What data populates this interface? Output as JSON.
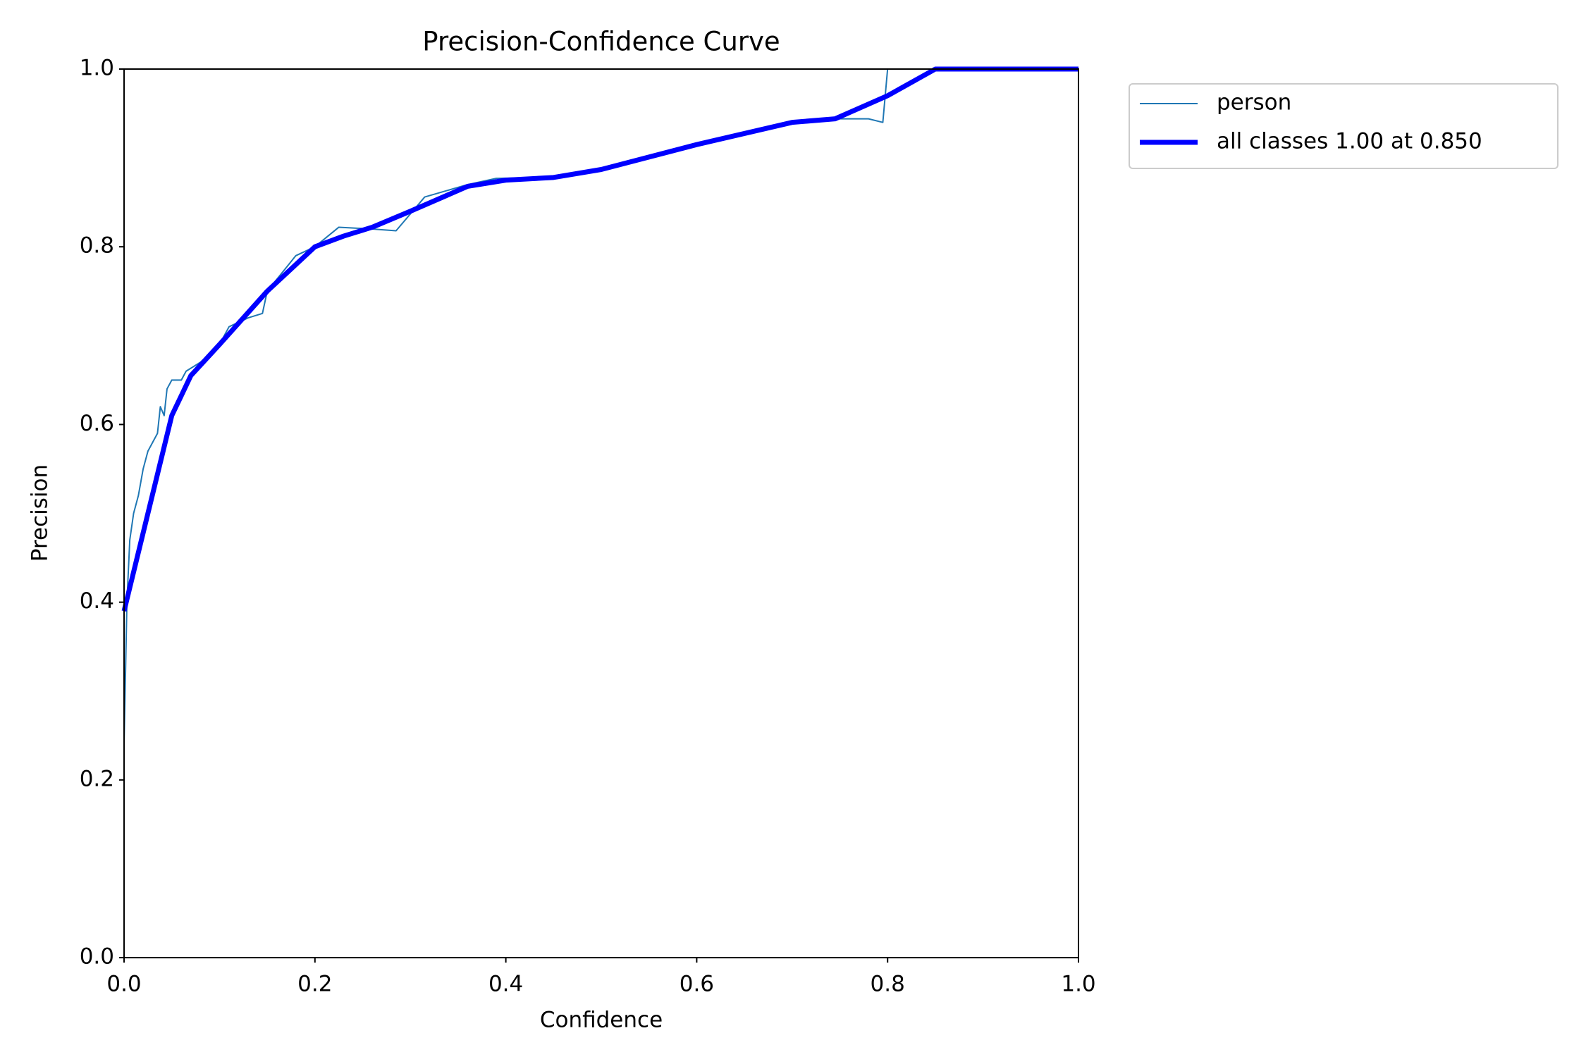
{
  "chart_data": {
    "type": "line",
    "title": "Precision-Confidence Curve",
    "xlabel": "Confidence",
    "ylabel": "Precision",
    "xlim": [
      0,
      1
    ],
    "ylim": [
      0,
      1
    ],
    "xticks": [
      {
        "value": 0,
        "label": "0.0"
      },
      0.2,
      0.4,
      0.6,
      0.8,
      {
        "value": 1,
        "label": "1.0"
      }
    ],
    "yticks": [
      {
        "value": 0,
        "label": "0.0"
      },
      0.2,
      0.4,
      0.6,
      0.8,
      {
        "value": 1,
        "label": "1.0"
      }
    ],
    "grid": false,
    "legend": "outside upper right",
    "series": [
      {
        "name": "person",
        "color": "#1f77b4",
        "width": 2,
        "x": [
          0,
          0.003,
          0.006,
          0.01,
          0.015,
          0.02,
          0.025,
          0.03,
          0.035,
          0.038,
          0.042,
          0.045,
          0.05,
          0.06,
          0.065,
          0.08,
          0.1,
          0.11,
          0.13,
          0.145,
          0.15,
          0.18,
          0.2,
          0.225,
          0.26,
          0.285,
          0.315,
          0.36,
          0.39,
          0.45,
          0.5,
          0.6,
          0.7,
          0.75,
          0.78,
          0.795,
          0.8,
          1.0
        ],
        "values": [
          0.24,
          0.4,
          0.47,
          0.5,
          0.52,
          0.55,
          0.57,
          0.58,
          0.59,
          0.62,
          0.61,
          0.64,
          0.65,
          0.65,
          0.66,
          0.67,
          0.69,
          0.71,
          0.72,
          0.725,
          0.75,
          0.79,
          0.8,
          0.822,
          0.82,
          0.818,
          0.856,
          0.87,
          0.877,
          0.878,
          0.887,
          0.915,
          0.94,
          0.944,
          0.944,
          0.94,
          1.0,
          1.0
        ]
      },
      {
        "name": "all classes 1.00 at 0.850",
        "color": "#0000ff",
        "width": 7,
        "x": [
          0,
          0.05,
          0.07,
          0.1,
          0.15,
          0.2,
          0.23,
          0.26,
          0.3,
          0.36,
          0.4,
          0.45,
          0.5,
          0.6,
          0.7,
          0.745,
          0.8,
          0.85,
          1.0
        ],
        "values": [
          0.39,
          0.61,
          0.655,
          0.69,
          0.75,
          0.8,
          0.812,
          0.822,
          0.84,
          0.868,
          0.875,
          0.878,
          0.887,
          0.915,
          0.94,
          0.944,
          0.97,
          1.0,
          1.0
        ]
      }
    ]
  }
}
